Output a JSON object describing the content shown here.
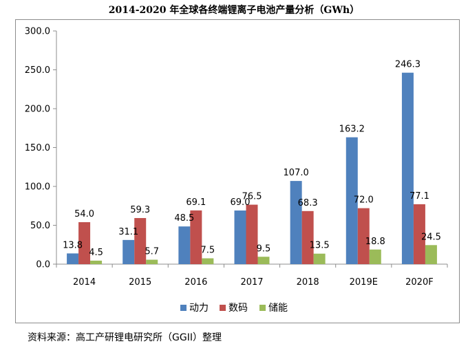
{
  "chart_data": {
    "type": "bar",
    "title": "2014-2020 年全球各终端锂离子电池产量分析（GWh）",
    "categories": [
      "2014",
      "2015",
      "2016",
      "2017",
      "2018",
      "2019E",
      "2020F"
    ],
    "series": [
      {
        "name": "动力",
        "color": "#4f81bd",
        "values": [
          13.8,
          31.1,
          48.5,
          69.0,
          107.0,
          163.2,
          246.3
        ]
      },
      {
        "name": "数码",
        "color": "#c0504d",
        "values": [
          54.0,
          59.3,
          69.1,
          76.5,
          68.3,
          72.0,
          77.1
        ]
      },
      {
        "name": "储能",
        "color": "#9bbb59",
        "values": [
          4.5,
          5.7,
          7.5,
          9.5,
          13.5,
          18.8,
          24.5
        ]
      }
    ],
    "ylim": [
      0,
      300
    ],
    "yticks": [
      "0.0",
      "50.0",
      "100.0",
      "150.0",
      "200.0",
      "250.0",
      "300.0"
    ],
    "ytick_values": [
      0,
      50,
      100,
      150,
      200,
      250,
      300
    ],
    "grid": false,
    "legend_position": "bottom"
  },
  "source_note": "资料来源：高工产研锂电研究所（GGII）整理"
}
